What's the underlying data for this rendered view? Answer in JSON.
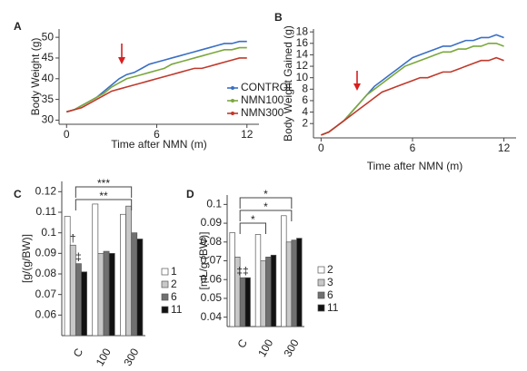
{
  "chart_data": [
    {
      "type": "line",
      "label": "A",
      "ylabel": "Body Weight (g)",
      "xlabel": "Time after NMN (m)",
      "x": [
        0,
        0.5,
        1,
        1.5,
        2,
        2.5,
        3,
        3.5,
        4,
        4.5,
        5,
        5.5,
        6,
        6.5,
        7,
        7.5,
        8,
        8.5,
        9,
        9.5,
        10,
        10.5,
        11,
        11.5,
        12
      ],
      "xlim": [
        -0.5,
        12.8
      ],
      "xticks": [
        0,
        6,
        12
      ],
      "ylim": [
        29,
        52
      ],
      "yticks": [
        30,
        35,
        40,
        45,
        50
      ],
      "series": [
        {
          "name": "CONTROL",
          "color": "#3a6fc4",
          "values": [
            32,
            32.5,
            33.5,
            34.5,
            35.5,
            37,
            38.5,
            40,
            41,
            41.5,
            42.5,
            43.5,
            44,
            44.5,
            45,
            45.5,
            46,
            46.5,
            47,
            47.5,
            48,
            48.5,
            48.5,
            49,
            49
          ]
        },
        {
          "name": "NMN100",
          "color": "#7aa83c",
          "values": [
            32,
            32.5,
            33.5,
            34.5,
            35.5,
            36.5,
            38,
            39,
            40,
            40.5,
            41,
            41.5,
            42,
            42.5,
            43.5,
            44,
            44.5,
            45,
            45.5,
            46,
            46.5,
            47,
            47,
            47.5,
            47.5
          ]
        },
        {
          "name": "NMN300",
          "color": "#c0392b",
          "values": [
            32,
            32.5,
            33,
            34,
            35,
            36,
            37,
            37.5,
            38,
            38.5,
            39,
            39.5,
            40,
            40.5,
            41,
            41.5,
            42,
            42.5,
            42.5,
            43,
            43.5,
            44,
            44.5,
            45,
            45
          ]
        }
      ]
    },
    {
      "type": "line",
      "label": "B",
      "ylabel": "Body Weight Gained (g)",
      "xlabel": "Time after NMN (m)",
      "x": [
        0,
        0.5,
        1,
        1.5,
        2,
        2.5,
        3,
        3.5,
        4,
        4.5,
        5,
        5.5,
        6,
        6.5,
        7,
        7.5,
        8,
        8.5,
        9,
        9.5,
        10,
        10.5,
        11,
        11.5,
        12
      ],
      "xlim": [
        -0.5,
        12.8
      ],
      "xticks": [
        0,
        6,
        12
      ],
      "ylim": [
        -0.5,
        18.5
      ],
      "yticks": [
        2,
        4,
        6,
        8,
        10,
        12,
        14,
        16,
        18
      ],
      "series": [
        {
          "name": "CONTROL",
          "color": "#3a6fc4",
          "values": [
            0,
            0.5,
            1.5,
            2.5,
            4,
            5.5,
            7,
            8.5,
            9.5,
            10.5,
            11.5,
            12.5,
            13.5,
            14,
            14.5,
            15,
            15.5,
            15.5,
            16,
            16.5,
            16.5,
            17,
            17,
            17.5,
            17
          ]
        },
        {
          "name": "NMN100",
          "color": "#7aa83c",
          "values": [
            0,
            0.5,
            1.5,
            2.5,
            4,
            5.5,
            7,
            8,
            9,
            10,
            11,
            12,
            12.5,
            13,
            13.5,
            14,
            14.5,
            14.5,
            15,
            15,
            15.5,
            15.5,
            16,
            16,
            15.5
          ]
        },
        {
          "name": "NMN300",
          "color": "#c0392b",
          "values": [
            0,
            0.5,
            1.5,
            2.5,
            3.5,
            4.5,
            5.5,
            6.5,
            7.5,
            8,
            8.5,
            9,
            9.5,
            10,
            10,
            10.5,
            11,
            11,
            11.5,
            12,
            12.5,
            13,
            13,
            13.5,
            13
          ]
        }
      ]
    },
    {
      "type": "bar",
      "label": "C",
      "ylabel": "[g/(g/BW)]",
      "categories": [
        "C",
        "100",
        "300"
      ],
      "ylim": [
        0.05,
        0.125
      ],
      "yticks": [
        0.06,
        0.07,
        0.08,
        0.09,
        0.1,
        0.11,
        0.12
      ],
      "series": [
        {
          "name": "1",
          "color": "#ffffff",
          "values": [
            0.108,
            0.114,
            0.109
          ]
        },
        {
          "name": "2",
          "color": "#c8c8c8",
          "values": [
            0.094,
            0.09,
            0.113
          ]
        },
        {
          "name": "6",
          "color": "#707070",
          "values": [
            0.085,
            0.091,
            0.1
          ]
        },
        {
          "name": "11",
          "color": "#111111",
          "values": [
            0.081,
            0.09,
            0.097
          ]
        }
      ],
      "annotations": [
        "***",
        "**",
        "†",
        "‡"
      ]
    },
    {
      "type": "bar",
      "label": "D",
      "ylabel": "[mL/g (BW)]",
      "categories": [
        "C",
        "100",
        "300"
      ],
      "ylim": [
        0.035,
        0.105
      ],
      "yticks": [
        0.04,
        0.05,
        0.06,
        0.07,
        0.08,
        0.09,
        0.1
      ],
      "series": [
        {
          "name": "2",
          "color": "#ffffff",
          "values": [
            0.085,
            0.084,
            0.094
          ]
        },
        {
          "name": "3",
          "color": "#c8c8c8",
          "values": [
            0.072,
            0.07,
            0.08
          ]
        },
        {
          "name": "6",
          "color": "#707070",
          "values": [
            0.061,
            0.072,
            0.081
          ]
        },
        {
          "name": "11",
          "color": "#111111",
          "values": [
            0.061,
            0.073,
            0.082
          ]
        }
      ],
      "annotations": [
        "*",
        "*",
        "*",
        "‡‡"
      ]
    }
  ]
}
